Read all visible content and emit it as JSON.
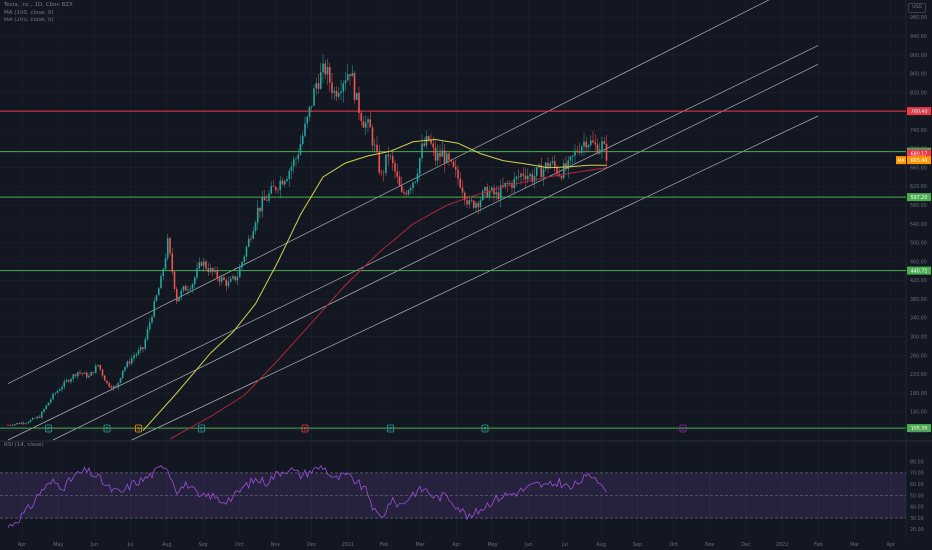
{
  "header": {
    "symbol_line": "Tesla, Inc., 1D, Cboe BZX",
    "ma1_label": "MA (100, close, 0)",
    "ma2_label": "MA (200, close, 0)",
    "rsi_label": "RSI (14, close)",
    "currency_button": "USD"
  },
  "chart_data": {
    "type": "line",
    "title": "",
    "xlabel": "",
    "ylabel": "",
    "price_axis": {
      "ticks": [
        100,
        140,
        180,
        220,
        260,
        300,
        340,
        380,
        420,
        460,
        500,
        540,
        580,
        620,
        660,
        700,
        740,
        780,
        820,
        860,
        900,
        940,
        980
      ],
      "ylim": [
        80,
        1000
      ]
    },
    "time_axis": {
      "labels": [
        "Apr",
        "May",
        "Jun",
        "Jul",
        "Aug",
        "Sep",
        "Oct",
        "Nov",
        "Dec",
        "2021",
        "Feb",
        "Mar",
        "Apr",
        "May",
        "Jun",
        "Jul",
        "Aug",
        "Sep",
        "Oct",
        "Nov",
        "Dec",
        "2022",
        "Feb",
        "Mar",
        "Apr"
      ]
    },
    "horizontal_levels": [
      {
        "value": 780.4,
        "label": "780.40",
        "color": "#f23645"
      },
      {
        "value": 694.16,
        "label": "694.16",
        "color": "#4caf50"
      },
      {
        "value": 597.2,
        "label": "597.20",
        "color": "#4caf50"
      },
      {
        "value": 440.71,
        "label": "440.71",
        "color": "#4caf50"
      },
      {
        "value": 105.36,
        "label": "105.36",
        "color": "#4caf50"
      }
    ],
    "price_markers": [
      {
        "label": "680.17",
        "color": "#f23645"
      },
      {
        "label": "665.40",
        "color": "#ff9800",
        "prefix": "MA"
      }
    ],
    "close_series": [
      [
        0,
        112
      ],
      [
        8,
        118
      ],
      [
        14,
        130
      ],
      [
        20,
        175
      ],
      [
        26,
        205
      ],
      [
        31,
        225
      ],
      [
        36,
        215
      ],
      [
        40,
        240
      ],
      [
        44,
        200
      ],
      [
        48,
        190
      ],
      [
        51,
        230
      ],
      [
        56,
        260
      ],
      [
        60,
        275
      ],
      [
        64,
        350
      ],
      [
        68,
        420
      ],
      [
        71,
        500
      ],
      [
        75,
        380
      ],
      [
        78,
        400
      ],
      [
        82,
        415
      ],
      [
        86,
        460
      ],
      [
        90,
        440
      ],
      [
        94,
        425
      ],
      [
        98,
        412
      ],
      [
        102,
        430
      ],
      [
        107,
        505
      ],
      [
        111,
        570
      ],
      [
        115,
        595
      ],
      [
        119,
        620
      ],
      [
        124,
        648
      ],
      [
        128,
        680
      ],
      [
        133,
        760
      ],
      [
        137,
        840
      ],
      [
        141,
        870
      ],
      [
        145,
        820
      ],
      [
        149,
        850
      ],
      [
        152,
        870
      ],
      [
        155,
        800
      ],
      [
        158,
        760
      ],
      [
        161,
        740
      ],
      [
        163,
        700
      ],
      [
        166,
        640
      ],
      [
        169,
        690
      ],
      [
        172,
        650
      ],
      [
        175,
        600
      ],
      [
        178,
        620
      ],
      [
        181,
        640
      ],
      [
        184,
        700
      ],
      [
        187,
        720
      ],
      [
        190,
        680
      ],
      [
        193,
        690
      ],
      [
        197,
        660
      ],
      [
        201,
        630
      ],
      [
        205,
        580
      ],
      [
        209,
        590
      ],
      [
        213,
        610
      ],
      [
        217,
        600
      ],
      [
        221,
        620
      ],
      [
        225,
        630
      ],
      [
        229,
        650
      ],
      [
        233,
        640
      ],
      [
        237,
        655
      ],
      [
        241,
        670
      ],
      [
        245,
        650
      ],
      [
        249,
        660
      ],
      [
        253,
        700
      ],
      [
        257,
        720
      ],
      [
        261,
        705
      ],
      [
        264,
        708
      ],
      [
        266,
        688
      ]
    ],
    "ma100_series": [
      [
        60,
        100
      ],
      [
        75,
        180
      ],
      [
        90,
        265
      ],
      [
        100,
        310
      ],
      [
        110,
        370
      ],
      [
        120,
        460
      ],
      [
        130,
        560
      ],
      [
        140,
        640
      ],
      [
        150,
        670
      ],
      [
        160,
        685
      ],
      [
        170,
        695
      ],
      [
        180,
        715
      ],
      [
        190,
        720
      ],
      [
        200,
        712
      ],
      [
        210,
        690
      ],
      [
        220,
        675
      ],
      [
        230,
        668
      ],
      [
        240,
        660
      ],
      [
        250,
        662
      ],
      [
        258,
        665
      ],
      [
        266,
        665
      ]
    ],
    "ma200_series": [
      [
        72,
        82
      ],
      [
        90,
        130
      ],
      [
        105,
        175
      ],
      [
        120,
        250
      ],
      [
        135,
        330
      ],
      [
        150,
        410
      ],
      [
        165,
        480
      ],
      [
        180,
        540
      ],
      [
        195,
        580
      ],
      [
        210,
        605
      ],
      [
        225,
        625
      ],
      [
        240,
        640
      ],
      [
        255,
        652
      ],
      [
        266,
        660
      ]
    ],
    "channel_lines": [
      [
        [
          0,
          200
        ],
        [
          360,
          1070
        ]
      ],
      [
        [
          0,
          80
        ],
        [
          360,
          920
        ]
      ],
      [
        [
          20,
          80
        ],
        [
          360,
          880
        ]
      ],
      [
        [
          55,
          80
        ],
        [
          360,
          770
        ]
      ]
    ],
    "rsi": {
      "ticks": [
        80,
        70,
        60,
        50,
        40,
        30,
        20
      ],
      "ylim": [
        15,
        85
      ],
      "band": [
        30,
        70
      ],
      "series": [
        [
          0,
          22
        ],
        [
          5,
          30
        ],
        [
          10,
          40
        ],
        [
          15,
          55
        ],
        [
          20,
          62
        ],
        [
          25,
          58
        ],
        [
          30,
          68
        ],
        [
          35,
          72
        ],
        [
          40,
          66
        ],
        [
          45,
          56
        ],
        [
          50,
          52
        ],
        [
          55,
          60
        ],
        [
          60,
          64
        ],
        [
          65,
          70
        ],
        [
          70,
          78
        ],
        [
          75,
          55
        ],
        [
          80,
          60
        ],
        [
          85,
          48
        ],
        [
          90,
          50
        ],
        [
          95,
          45
        ],
        [
          100,
          48
        ],
        [
          105,
          58
        ],
        [
          110,
          64
        ],
        [
          115,
          62
        ],
        [
          120,
          70
        ],
        [
          125,
          74
        ],
        [
          130,
          68
        ],
        [
          135,
          72
        ],
        [
          140,
          76
        ],
        [
          145,
          64
        ],
        [
          150,
          68
        ],
        [
          155,
          62
        ],
        [
          160,
          52
        ],
        [
          163,
          35
        ],
        [
          166,
          30
        ],
        [
          170,
          45
        ],
        [
          175,
          42
        ],
        [
          180,
          52
        ],
        [
          185,
          56
        ],
        [
          190,
          48
        ],
        [
          195,
          50
        ],
        [
          200,
          40
        ],
        [
          205,
          30
        ],
        [
          210,
          38
        ],
        [
          215,
          45
        ],
        [
          220,
          50
        ],
        [
          225,
          52
        ],
        [
          230,
          56
        ],
        [
          235,
          60
        ],
        [
          240,
          58
        ],
        [
          245,
          62
        ],
        [
          250,
          56
        ],
        [
          255,
          64
        ],
        [
          260,
          68
        ],
        [
          264,
          62
        ],
        [
          266,
          50
        ]
      ]
    },
    "event_markers": [
      {
        "letter": "E",
        "color": "#26a69a",
        "day": 18
      },
      {
        "letter": "E",
        "color": "#26a69a",
        "day": 44
      },
      {
        "letter": "S",
        "color": "#ff9800",
        "day": 58
      },
      {
        "letter": "E",
        "color": "#26a69a",
        "day": 86
      },
      {
        "letter": "E",
        "color": "#f23645",
        "day": 132
      },
      {
        "letter": "E",
        "color": "#26a69a",
        "day": 170
      },
      {
        "letter": "E",
        "color": "#26a69a",
        "day": 212
      },
      {
        "letter": "E",
        "color": "#9c27b0",
        "day": 300
      }
    ]
  }
}
